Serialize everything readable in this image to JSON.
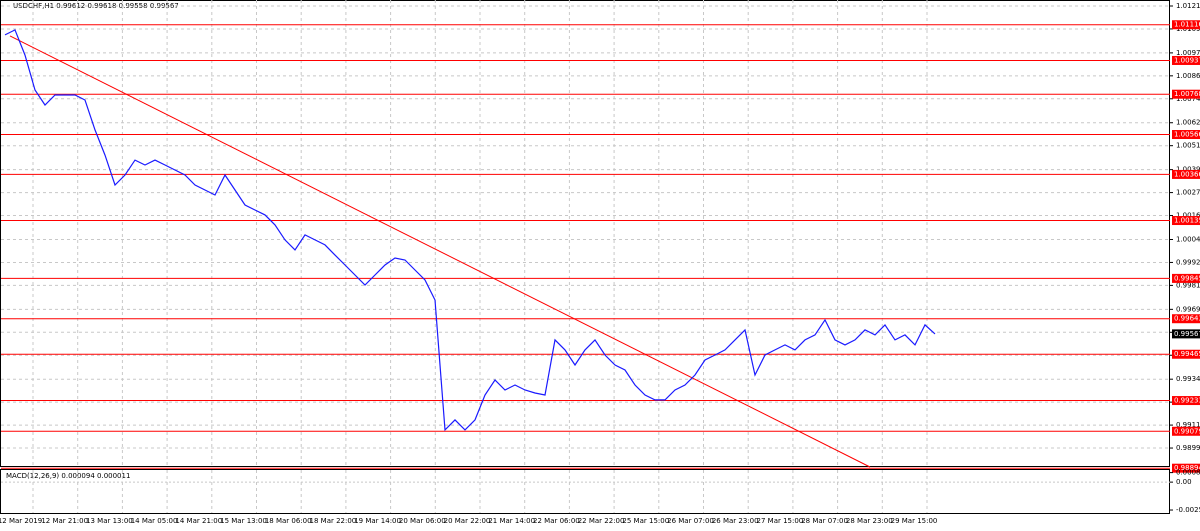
{
  "chart_data": {
    "type": "line",
    "title": "USDCHF,H1 0.99612 0.99618 0.99558 0.99567",
    "color": "#1a1aff",
    "values": [
      1.01065,
      1.0109,
      1.00964,
      1.00789,
      1.00714,
      1.00764,
      1.00764,
      1.00764,
      1.00739,
      1.00589,
      1.00463,
      1.00313,
      1.00363,
      1.00438,
      1.00413,
      1.00438,
      1.00413,
      1.00388,
      1.00363,
      1.00313,
      1.00288,
      1.00263,
      1.00363,
      1.00288,
      1.00213,
      1.00188,
      1.00163,
      1.00113,
      1.00038,
      0.99988,
      1.00063,
      1.00038,
      1.00013,
      0.99962,
      0.99912,
      0.99862,
      0.99812,
      0.99862,
      0.99912,
      0.99947,
      0.99937,
      0.99887,
      0.99837,
      0.99737,
      0.99086,
      0.99136,
      0.99086,
      0.99136,
      0.99261,
      0.99336,
      0.99286,
      0.99311,
      0.99286,
      0.99271,
      0.99261,
      0.99537,
      0.99487,
      0.99411,
      0.99487,
      0.99537,
      0.99461,
      0.99411,
      0.99386,
      0.99311,
      0.99261,
      0.99236,
      0.99236,
      0.99286,
      0.99311,
      0.99361,
      0.99436,
      0.99461,
      0.99487,
      0.99537,
      0.99587,
      0.99361,
      0.99461,
      0.99487,
      0.99512,
      0.99487,
      0.99537,
      0.99562,
      0.99637,
      0.99537,
      0.99512,
      0.99537,
      0.99587,
      0.99562,
      0.99612,
      0.99537,
      0.99562,
      0.99512,
      0.99612,
      0.99567
    ],
    "ylim": [
      0.989,
      1.0124
    ],
    "yticks": [
      {
        "value": 1.0121,
        "label": "1.01210"
      },
      1.01095,
      1.00975,
      {
        "value": 1.0086,
        "label": "1.00860"
      },
      1.00745,
      1.00625,
      {
        "value": 1.0051,
        "label": "1.00510"
      },
      {
        "value": 1.0039,
        "label": "1.00390"
      },
      1.00275,
      {
        "value": 1.0016,
        "label": "1.00160"
      },
      {
        "value": 1.0004,
        "label": "1.00040"
      },
      0.99925,
      {
        "value": 0.9981,
        "label": "0.99810"
      },
      {
        "value": 0.9969,
        "label": "0.99690"
      },
      0.99575,
      {
        "value": 0.9946,
        "label": "0.99460"
      },
      {
        "value": 0.9934,
        "label": "0.99340"
      },
      0.99225,
      {
        "value": 0.9911,
        "label": "0.99110"
      },
      0.98995
    ],
    "levels": [
      1.01116,
      1.00937,
      1.00768,
      1.00566,
      1.00366,
      1.00135,
      0.99845,
      0.99643,
      0.99465,
      0.99233,
      0.99079,
      0.98894
    ],
    "current_price": 0.99567,
    "trendline": [
      1.0106,
      0.989
    ],
    "grid": true,
    "time_labels": [
      "12 Mar 2019",
      "12 Mar 21:00",
      "13 Mar 13:00",
      "14 Mar 05:00",
      "14 Mar 21:00",
      "15 Mar 13:00",
      "18 Mar 06:00",
      "18 Mar 22:00",
      "19 Mar 14:00",
      "20 Mar 06:00",
      "20 Mar 22:00",
      "21 Mar 14:00",
      "22 Mar 06:00",
      "22 Mar 22:00",
      "25 Mar 15:00",
      "26 Mar 07:00",
      "26 Mar 23:00",
      "27 Mar 15:00",
      "28 Mar 07:00",
      "28 Mar 23:00",
      "29 Mar 15:00"
    ],
    "macd": {
      "title": "MACD(12,26,9) 0.000094 0.000011",
      "ylim": [
        -0.0028,
        0.0011
      ],
      "yticks": [
        0.000864,
        {
          "value": 0,
          "label": "0.00"
        },
        -0.00253
      ]
    }
  }
}
